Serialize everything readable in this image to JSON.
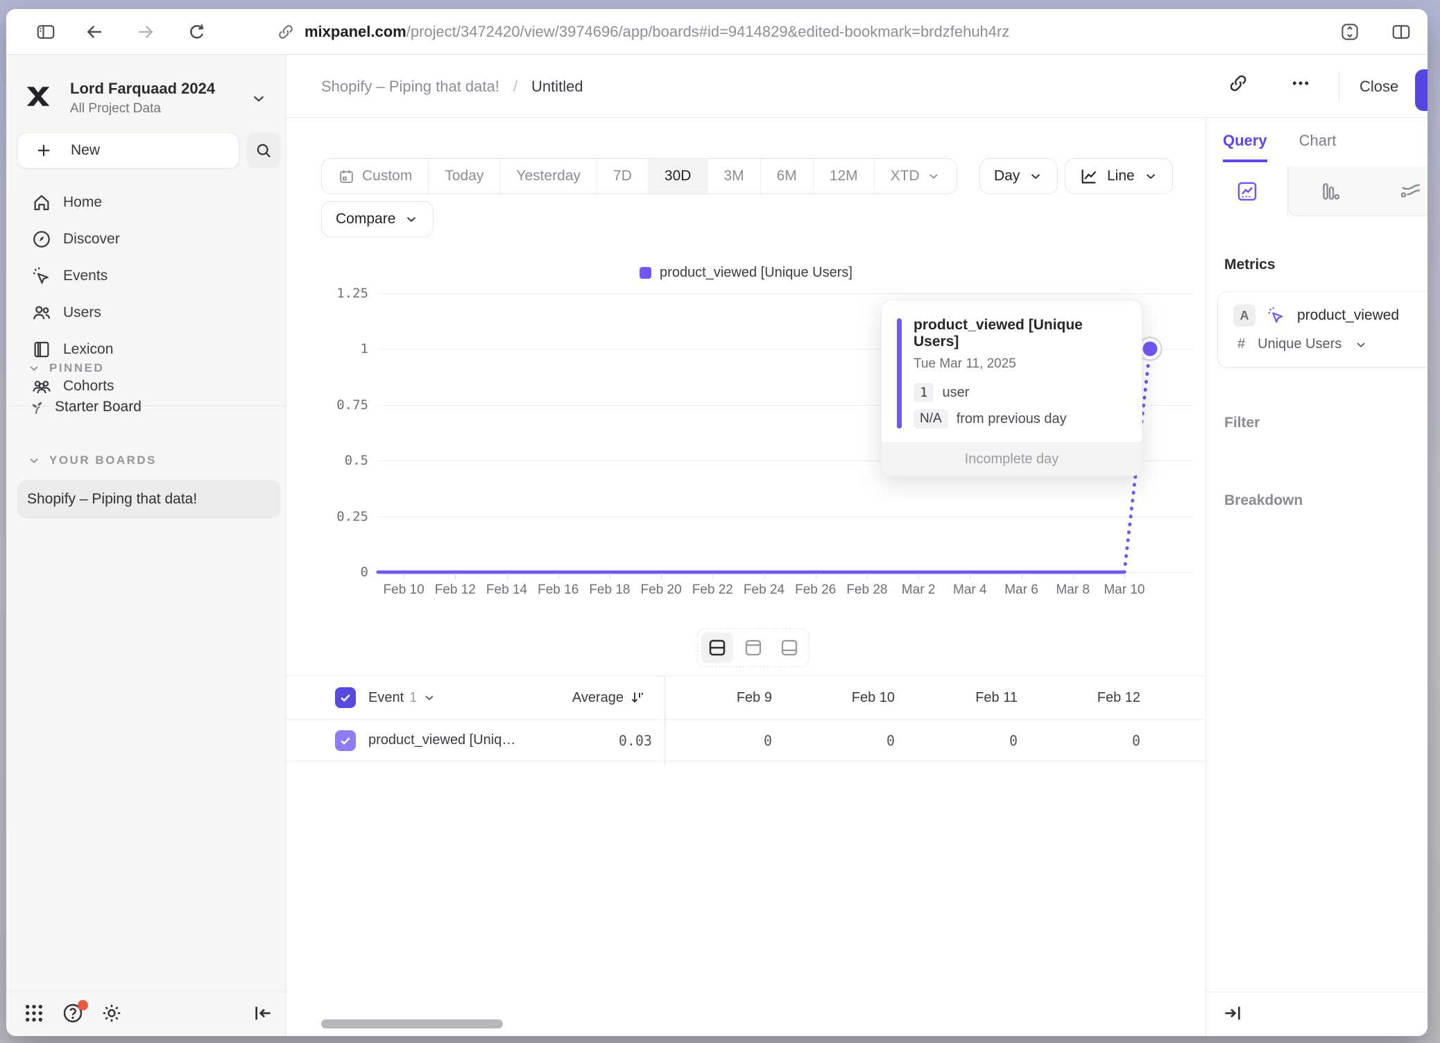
{
  "browser": {
    "url_domain": "mixpanel.com",
    "url_path": "/project/3472420/view/3974696/app/boards#id=9414829&edited-bookmark=brdzfehuh4rz"
  },
  "sidebar": {
    "project_name": "Lord Farquaad 2024",
    "project_scope": "All Project Data",
    "new_label": "New",
    "nav": [
      {
        "id": "home",
        "label": "Home"
      },
      {
        "id": "discover",
        "label": "Discover"
      },
      {
        "id": "events",
        "label": "Events"
      },
      {
        "id": "users",
        "label": "Users"
      },
      {
        "id": "lexicon",
        "label": "Lexicon"
      },
      {
        "id": "cohorts",
        "label": "Cohorts"
      }
    ],
    "pinned_label": "PINNED",
    "pinned_items": [
      {
        "label": "Starter Board"
      }
    ],
    "boards_label": "YOUR BOARDS",
    "boards": [
      {
        "label": "Shopify – Piping that data!",
        "selected": true
      }
    ]
  },
  "header": {
    "breadcrumb_board": "Shopify – Piping that data!",
    "breadcrumb_sep": "/",
    "breadcrumb_page": "Untitled",
    "close_label": "Close"
  },
  "controls": {
    "ranges": [
      "Custom",
      "Today",
      "Yesterday",
      "7D",
      "30D",
      "3M",
      "6M",
      "12M",
      "XTD"
    ],
    "selected_range": "30D",
    "granularity": "Day",
    "chart_type": "Line",
    "compare_label": "Compare"
  },
  "chart_data": {
    "type": "line",
    "legend": [
      {
        "label": "product_viewed [Unique Users]",
        "color": "#7456F2"
      }
    ],
    "x": [
      "Feb 9",
      "Feb 10",
      "Feb 11",
      "Feb 12",
      "Feb 13",
      "Feb 14",
      "Feb 15",
      "Feb 16",
      "Feb 17",
      "Feb 18",
      "Feb 19",
      "Feb 20",
      "Feb 21",
      "Feb 22",
      "Feb 23",
      "Feb 24",
      "Feb 25",
      "Feb 26",
      "Feb 27",
      "Feb 28",
      "Mar 1",
      "Mar 2",
      "Mar 3",
      "Mar 4",
      "Mar 5",
      "Mar 6",
      "Mar 7",
      "Mar 8",
      "Mar 9",
      "Mar 10",
      "Mar 11"
    ],
    "series": [
      {
        "name": "product_viewed [Unique Users]",
        "values": [
          0,
          0,
          0,
          0,
          0,
          0,
          0,
          0,
          0,
          0,
          0,
          0,
          0,
          0,
          0,
          0,
          0,
          0,
          0,
          0,
          0,
          0,
          0,
          0,
          0,
          0,
          0,
          0,
          0,
          0,
          1
        ]
      }
    ],
    "x_tick_labels": [
      "Feb 10",
      "Feb 12",
      "Feb 14",
      "Feb 16",
      "Feb 18",
      "Feb 20",
      "Feb 22",
      "Feb 24",
      "Feb 26",
      "Feb 28",
      "Mar 2",
      "Mar 4",
      "Mar 6",
      "Mar 8",
      "Mar 10"
    ],
    "ytick_labels": [
      "0",
      "0.25",
      "0.5",
      "0.75",
      "1",
      "1.25"
    ],
    "yticks": [
      0,
      0.25,
      0.5,
      0.75,
      1,
      1.25
    ],
    "ylim": [
      0,
      1.25
    ],
    "incomplete_final_segment": true,
    "hovered_point": {
      "x": "Mar 11",
      "value": 1
    }
  },
  "tooltip": {
    "title": "product_viewed [Unique Users]",
    "date": "Tue Mar 11, 2025",
    "value": "1",
    "unit": "user",
    "delta": "N/A",
    "delta_label": "from previous day",
    "footer": "Incomplete day"
  },
  "table": {
    "event_label": "Event",
    "event_count": "1",
    "average_label": "Average",
    "columns": [
      "Feb 9",
      "Feb 10",
      "Feb 11",
      "Feb 12"
    ],
    "rows": [
      {
        "name": "product_viewed [Uniq…",
        "average": "0.03",
        "values": [
          "0",
          "0",
          "0",
          "0"
        ]
      }
    ]
  },
  "panel": {
    "tab_query": "Query",
    "tab_chart": "Chart",
    "metrics_label": "Metrics",
    "metric_letter": "A",
    "metric_event": "product_viewed",
    "metric_agg_symbol": "#",
    "metric_agg": "Unique Users",
    "filter_label": "Filter",
    "breakdown_label": "Breakdown"
  }
}
